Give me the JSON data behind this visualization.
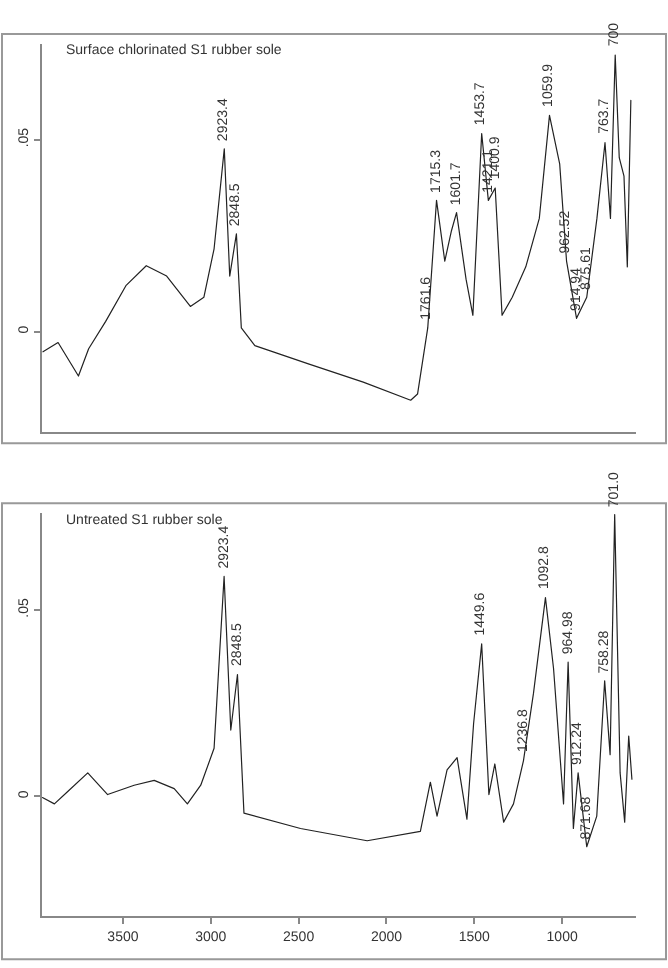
{
  "chart_data": [
    {
      "type": "line",
      "title": "Surface chlorinated S1 rubber sole",
      "xlim": [
        3960,
        580
      ],
      "ylim": [
        -0.026,
        0.075
      ],
      "yticks": [
        0,
        {
          "value": 0.05,
          "label": ".05"
        }
      ],
      "tick_labels": "y",
      "series": [
        {
          "color": "#222222",
          "x": [
            3955,
            3869,
            3753,
            3695,
            3598,
            3483,
            3367,
            3251,
            3116,
            3039,
            2981,
            2923,
            2892,
            2854,
            2826,
            2749,
            2440,
            2132,
            1862,
            1823,
            1765,
            1715,
            1668,
            1630,
            1601,
            1547,
            1508,
            1458,
            1420,
            1381,
            1342,
            1284,
            1207,
            1130,
            1072,
            1014,
            975,
            918,
            860,
            802,
            756,
            725,
            698,
            675,
            648,
            629,
            609
          ],
          "values": [
            -0.0052,
            -0.0028,
            -0.0115,
            -0.0044,
            0.0027,
            0.012,
            0.0172,
            0.0145,
            0.0066,
            0.009,
            0.0216,
            0.0476,
            0.0145,
            0.0255,
            0.001,
            -0.0036,
            -0.0084,
            -0.0131,
            -0.0178,
            -0.0162,
            0.001,
            0.0342,
            0.0184,
            0.0263,
            0.031,
            0.0137,
            0.0043,
            0.0516,
            0.0342,
            0.0374,
            0.0043,
            0.009,
            0.0169,
            0.0295,
            0.0563,
            0.0437,
            0.0184,
            0.0035,
            0.009,
            0.0295,
            0.0492,
            0.0295,
            0.072,
            0.0453,
            0.0405,
            0.0169,
            0.0602
          ]
        }
      ],
      "annotations": [
        {
          "text": "2923.4",
          "x": 2923,
          "y": 0.0476
        },
        {
          "text": "2848.5",
          "x": 2854,
          "y": 0.0255
        },
        {
          "text": "1761.6",
          "x": 1765,
          "y": 0.001
        },
        {
          "text": "1715.3",
          "x": 1715,
          "y": 0.0342
        },
        {
          "text": "1601.7",
          "x": 1601,
          "y": 0.031
        },
        {
          "text": "1453.7",
          "x": 1458,
          "y": 0.0516
        },
        {
          "text": "1421.1",
          "x": 1420,
          "y": 0.0342
        },
        {
          "text": "1400.9",
          "x": 1381,
          "y": 0.0374
        },
        {
          "text": "1059.9",
          "x": 1072,
          "y": 0.0563
        },
        {
          "text": "962.52",
          "x": 975,
          "y": 0.0184
        },
        {
          "text": "914.94",
          "x": 918,
          "y": 0.0035
        },
        {
          "text": "875.61",
          "x": 860,
          "y": 0.009
        },
        {
          "text": "763.7",
          "x": 756,
          "y": 0.0492
        },
        {
          "text": "700",
          "x": 698,
          "y": 0.072
        }
      ]
    },
    {
      "type": "line",
      "title": "Untreated S1 rubber sole",
      "xlim": [
        3960,
        580
      ],
      "xticks": [
        3500,
        3000,
        2500,
        2000,
        1500,
        1000
      ],
      "ylim": [
        -0.032,
        0.076
      ],
      "yticks": [
        0,
        {
          "value": 0.05,
          "label": ".05"
        }
      ],
      "series": [
        {
          "color": "#222222",
          "x": [
            3958,
            3890,
            3814,
            3700,
            3587,
            3436,
            3322,
            3208,
            3133,
            3057,
            2981,
            2924,
            2886,
            2848,
            2811,
            2489,
            2110,
            1807,
            1750,
            1712,
            1655,
            1598,
            1542,
            1504,
            1458,
            1417,
            1383,
            1333,
            1277,
            1220,
            1163,
            1095,
            1049,
            992,
            966,
            936,
            909,
            860,
            803,
            758,
            727,
            701,
            670,
            644,
            621,
            603
          ],
          "values": [
            -0.0003,
            -0.002,
            0.0013,
            0.0063,
            0.0005,
            0.003,
            0.0043,
            0.0021,
            -0.002,
            0.003,
            0.0129,
            0.059,
            0.0178,
            0.0327,
            -0.0045,
            -0.0086,
            -0.0119,
            -0.0094,
            0.0038,
            -0.0053,
            0.0071,
            0.0104,
            -0.0061,
            0.0195,
            0.0409,
            0.0005,
            0.0087,
            -0.0069,
            -0.002,
            0.0096,
            0.0277,
            0.0533,
            0.0343,
            -0.002,
            0.036,
            -0.0086,
            0.0063,
            -0.0135,
            -0.0053,
            0.031,
            0.0112,
            0.0756,
            0.0063,
            -0.0069,
            0.0162,
            0.0046
          ]
        }
      ],
      "annotations": [
        {
          "text": "2923.4",
          "x": 2924,
          "y": 0.059
        },
        {
          "text": "2848.5",
          "x": 2848,
          "y": 0.0327
        },
        {
          "text": "1449.6",
          "x": 1458,
          "y": 0.0409
        },
        {
          "text": "1236.8",
          "x": 1220,
          "y": 0.0096
        },
        {
          "text": "1092.8",
          "x": 1095,
          "y": 0.0533
        },
        {
          "text": "964.98",
          "x": 966,
          "y": 0.036
        },
        {
          "text": "912.24",
          "x": 909,
          "y": 0.0063
        },
        {
          "text": "871.68",
          "x": 860,
          "y": -0.0135
        },
        {
          "text": "758.28",
          "x": 758,
          "y": 0.031
        },
        {
          "text": "701.0",
          "x": 701,
          "y": 0.0756
        }
      ]
    }
  ]
}
